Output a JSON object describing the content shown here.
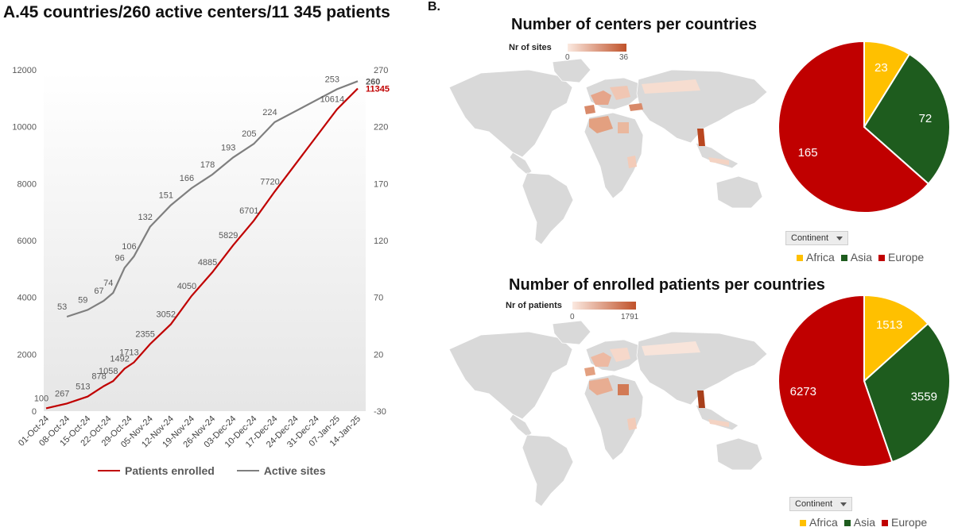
{
  "panel_a": {
    "title": "A.45 countries/260 active centers/11 345 patients",
    "legend": {
      "patients_label": "Patients enrolled",
      "sites_label": "Active sites"
    }
  },
  "panel_b": {
    "label": "B.",
    "map1": {
      "title": "Number of centers per countries",
      "scale_title": "Nr of sites",
      "scale_min": "0",
      "scale_max": "36"
    },
    "map2": {
      "title": "Number of enrolled patients per countries",
      "scale_title": "Nr of patients",
      "scale_min": "0",
      "scale_max": "1791"
    },
    "continent_filter_label": "Continent",
    "continent_legend": [
      "Africa",
      "Asia",
      "Europe"
    ]
  },
  "colors": {
    "patients": "#c00000",
    "sites": "#7f7f7f",
    "africa": "#ffc000",
    "asia": "#1e5c1e",
    "europe": "#c00000",
    "land": "#d9d9d9"
  },
  "chart_data": [
    {
      "type": "line",
      "title": "A.45 countries/260 active centers/11 345 patients",
      "categories": [
        "01-Oct-24",
        "08-Oct-24",
        "15-Oct-24",
        "22-Oct-24",
        "29-Oct-24",
        "05-Nov-24",
        "12-Nov-24",
        "19-Nov-24",
        "26-Nov-24",
        "03-Dec-24",
        "10-Dec-24",
        "17-Dec-24",
        "24-Dec-24",
        "31-Dec-24",
        "07-Jan-25",
        "14-Jan-25"
      ],
      "left_ticks": [
        "0",
        "2000",
        "4000",
        "6000",
        "8000",
        "10000",
        "12000"
      ],
      "right_ticks": [
        "-30",
        "20",
        "70",
        "120",
        "170",
        "220",
        "270"
      ],
      "ylim_left": [
        0,
        12000
      ],
      "ylim_right": [
        -30,
        270
      ],
      "series": [
        {
          "name": "Patients enrolled",
          "axis": "left",
          "points": [
            {
              "x": "01-Oct-24",
              "y": 100,
              "label": "100"
            },
            {
              "x": "08-Oct-24",
              "y": 267,
              "label": "267"
            },
            {
              "x": "15-Oct-24",
              "y": 513,
              "label": "513"
            },
            {
              "x": "22-Oct-24",
              "y": 878,
              "label": "878"
            },
            {
              "x": "22-Oct-24",
              "y": 1058,
              "label": "1058"
            },
            {
              "x": "29-Oct-24",
              "y": 1492,
              "label": "1492"
            },
            {
              "x": "29-Oct-24",
              "y": 1713,
              "label": "1713"
            },
            {
              "x": "05-Nov-24",
              "y": 2355,
              "label": "2355"
            },
            {
              "x": "12-Nov-24",
              "y": 3052,
              "label": "3052"
            },
            {
              "x": "19-Nov-24",
              "y": 4050,
              "label": "4050"
            },
            {
              "x": "26-Nov-24",
              "y": 4885,
              "label": "4885"
            },
            {
              "x": "03-Dec-24",
              "y": 5829,
              "label": "5829"
            },
            {
              "x": "10-Dec-24",
              "y": 6701,
              "label": "6701"
            },
            {
              "x": "17-Dec-24",
              "y": 7720,
              "label": "7720"
            },
            {
              "x": "07-Jan-25",
              "y": 10614,
              "label": "10614"
            },
            {
              "x": "14-Jan-25",
              "y": 11345,
              "label": "11345"
            }
          ]
        },
        {
          "name": "Active sites",
          "axis": "right",
          "points": [
            {
              "x": "08-Oct-24",
              "y": 53,
              "label": "53"
            },
            {
              "x": "15-Oct-24",
              "y": 59,
              "label": "59"
            },
            {
              "x": "22-Oct-24",
              "y": 67,
              "label": "67"
            },
            {
              "x": "22-Oct-24",
              "y": 74,
              "label": "74"
            },
            {
              "x": "29-Oct-24",
              "y": 96,
              "label": "96"
            },
            {
              "x": "29-Oct-24",
              "y": 106,
              "label": "106"
            },
            {
              "x": "05-Nov-24",
              "y": 132,
              "label": "132"
            },
            {
              "x": "12-Nov-24",
              "y": 151,
              "label": "151"
            },
            {
              "x": "19-Nov-24",
              "y": 166,
              "label": "166"
            },
            {
              "x": "26-Nov-24",
              "y": 178,
              "label": "178"
            },
            {
              "x": "03-Dec-24",
              "y": 193,
              "label": "193"
            },
            {
              "x": "10-Dec-24",
              "y": 205,
              "label": "205"
            },
            {
              "x": "17-Dec-24",
              "y": 224,
              "label": "224"
            },
            {
              "x": "07-Jan-25",
              "y": 253,
              "label": "253"
            },
            {
              "x": "14-Jan-25",
              "y": 260,
              "label": "260"
            }
          ]
        }
      ],
      "legend_position": "bottom"
    },
    {
      "type": "pie",
      "title": "",
      "labels": [
        "Africa",
        "Asia",
        "Europe"
      ],
      "values": [
        23,
        72,
        165
      ]
    },
    {
      "type": "pie",
      "title": "",
      "labels": [
        "Africa",
        "Asia",
        "Europe"
      ],
      "values": [
        1513,
        3559,
        6273
      ]
    }
  ]
}
